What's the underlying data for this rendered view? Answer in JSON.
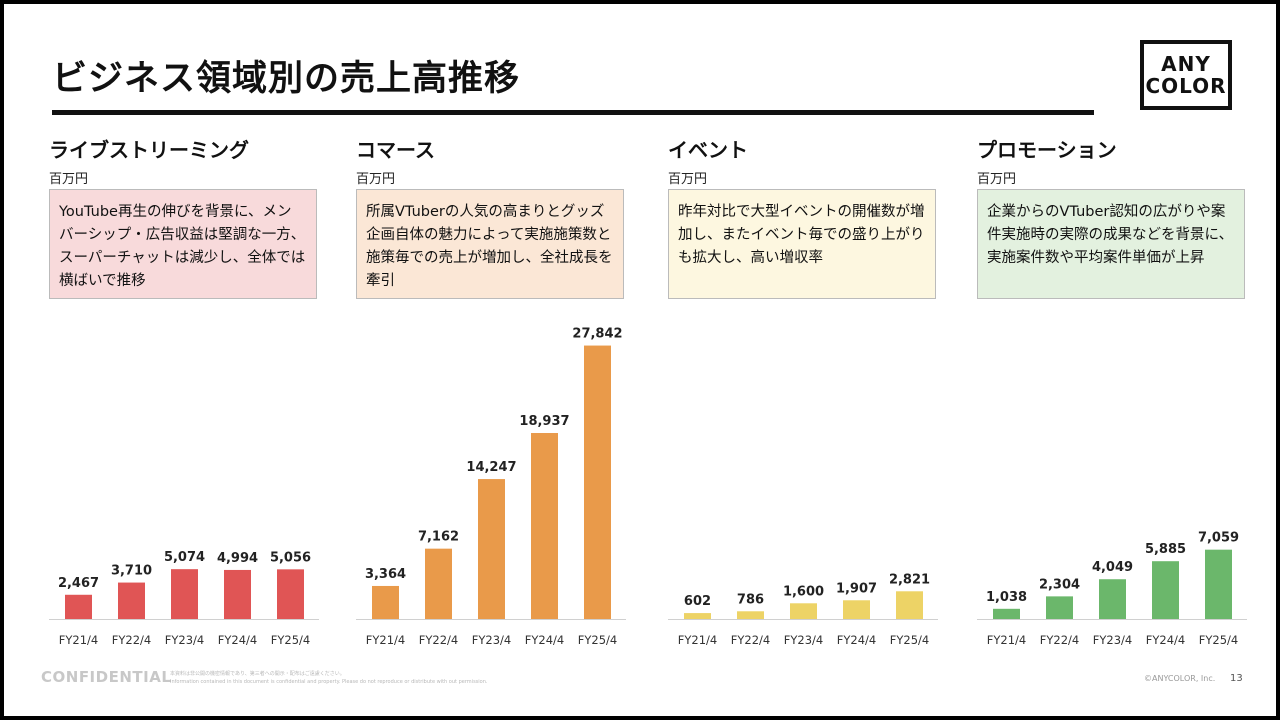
{
  "header": {
    "title": "ビジネス領域別の売上高推移",
    "logo_line1": "ANY",
    "logo_line2": "COLOR"
  },
  "sections": [
    {
      "title": "ライブストリーミング",
      "unit": "百万円",
      "description": "YouTube再生の伸びを背景に、メンバーシップ・広告収益は堅調な一方、スーパーチャットは減少し、全体では横ばいで推移",
      "box_bg": "#f8dadb",
      "bar_color": "#e05555"
    },
    {
      "title": "コマース",
      "unit": "百万円",
      "description": "所属VTuberの人気の高まりとグッズ企画自体の魅力によって実施施策数と施策毎での売上が増加し、全社成長を牽引",
      "box_bg": "#fbe7d6",
      "bar_color": "#e99a4a"
    },
    {
      "title": "イベント",
      "unit": "百万円",
      "description": "昨年対比で大型イベントの開催数が増加し、またイベント毎での盛り上がりも拡大し、高い増収率",
      "box_bg": "#fdf7e0",
      "bar_color": "#edd366"
    },
    {
      "title": "プロモーション",
      "unit": "百万円",
      "description": "企業からのVTuber認知の広がりや案件実施時の実際の成果などを背景に、実施案件数や平均案件単価が上昇",
      "box_bg": "#e3f1df",
      "bar_color": "#6bb76b"
    }
  ],
  "chart_data": [
    {
      "type": "bar",
      "title": "ライブストリーミング",
      "ylabel": "百万円",
      "categories": [
        "FY21/4",
        "FY22/4",
        "FY23/4",
        "FY24/4",
        "FY25/4"
      ],
      "values": [
        2467,
        3710,
        5074,
        4994,
        5056
      ],
      "value_labels": [
        "2,467",
        "3,710",
        "5,074",
        "4,994",
        "5,056"
      ],
      "ylim": [
        0,
        28000
      ],
      "grid": false
    },
    {
      "type": "bar",
      "title": "コマース",
      "ylabel": "百万円",
      "categories": [
        "FY21/4",
        "FY22/4",
        "FY23/4",
        "FY24/4",
        "FY25/4"
      ],
      "values": [
        3364,
        7162,
        14247,
        18937,
        27842
      ],
      "value_labels": [
        "3,364",
        "7,162",
        "14,247",
        "18,937",
        "27,842"
      ],
      "ylim": [
        0,
        28000
      ],
      "grid": false
    },
    {
      "type": "bar",
      "title": "イベント",
      "ylabel": "百万円",
      "categories": [
        "FY21/4",
        "FY22/4",
        "FY23/4",
        "FY24/4",
        "FY25/4"
      ],
      "values": [
        602,
        786,
        1600,
        1907,
        2821
      ],
      "value_labels": [
        "602",
        "786",
        "1,600",
        "1,907",
        "2,821"
      ],
      "ylim": [
        0,
        28000
      ],
      "grid": false
    },
    {
      "type": "bar",
      "title": "プロモーション",
      "ylabel": "百万円",
      "categories": [
        "FY21/4",
        "FY22/4",
        "FY23/4",
        "FY24/4",
        "FY25/4"
      ],
      "values": [
        1038,
        2304,
        4049,
        5885,
        7059
      ],
      "value_labels": [
        "1,038",
        "2,304",
        "4,049",
        "5,885",
        "7,059"
      ],
      "ylim": [
        0,
        28000
      ],
      "grid": false
    }
  ],
  "footer": {
    "confidential": "CONFIDENTIAL",
    "notice_jp": "本資料は非公開の機密情報であり、第三者への開示・配布はご遠慮ください。",
    "notice_en": "Information contained in this document is confidential and property. Please do not reproduce or distribute with out permission.",
    "copyright": "©ANYCOLOR, Inc.",
    "page_number": "13"
  }
}
